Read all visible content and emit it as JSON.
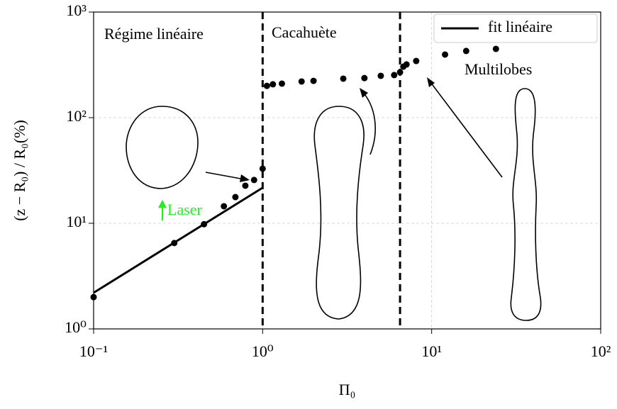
{
  "chart_data": {
    "type": "scatter",
    "xlabel": "Π₀",
    "ylabel": "(z − R₀) / R₀(%)",
    "log_x": true,
    "log_y": true,
    "grid": true,
    "legend": "upper right",
    "xlim": [
      0.1,
      100
    ],
    "ylim": [
      1,
      1000
    ],
    "xticks": [
      {
        "value": 0.1,
        "label": "10⁻¹"
      },
      {
        "value": 1,
        "label": "10⁰"
      },
      {
        "value": 10,
        "label": "10¹"
      },
      {
        "value": 100,
        "label": "10²"
      }
    ],
    "yticks": [
      {
        "value": 1,
        "label": "10⁰"
      },
      {
        "value": 10,
        "label": "10¹"
      },
      {
        "value": 100,
        "label": "10²"
      },
      {
        "value": 1000,
        "label": "10³"
      }
    ],
    "vlines": [
      1,
      6.5
    ],
    "series": [
      {
        "type": "scatter",
        "color": "#000000",
        "x": [
          0.1,
          0.3,
          0.45,
          0.59,
          0.69,
          0.79,
          0.89,
          1.0,
          1.06,
          1.15,
          1.3,
          1.7,
          2.0,
          3.0,
          4.0,
          5.0,
          6.0,
          6.5,
          6.8,
          7.1,
          8.1,
          12,
          16,
          24
        ],
        "values": [
          2.0,
          6.5,
          9.8,
          14.5,
          17.7,
          22.7,
          25.7,
          32.9,
          200,
          207,
          210,
          220,
          223,
          234,
          237,
          249,
          253,
          269,
          304,
          319,
          344,
          396,
          428,
          448
        ]
      },
      {
        "type": "line",
        "name": "fit linéaire",
        "color": "#000000",
        "x": [
          0.1,
          1
        ],
        "values": [
          2.2,
          21.7
        ]
      }
    ],
    "annotations": [
      {
        "text": "Régime linéaire",
        "color": "#000000"
      },
      {
        "text": "Cacahuète",
        "color": "#000000"
      },
      {
        "text": "Multilobes",
        "color": "#000000"
      },
      {
        "text": "Laser",
        "color": "#22ee22"
      }
    ]
  }
}
